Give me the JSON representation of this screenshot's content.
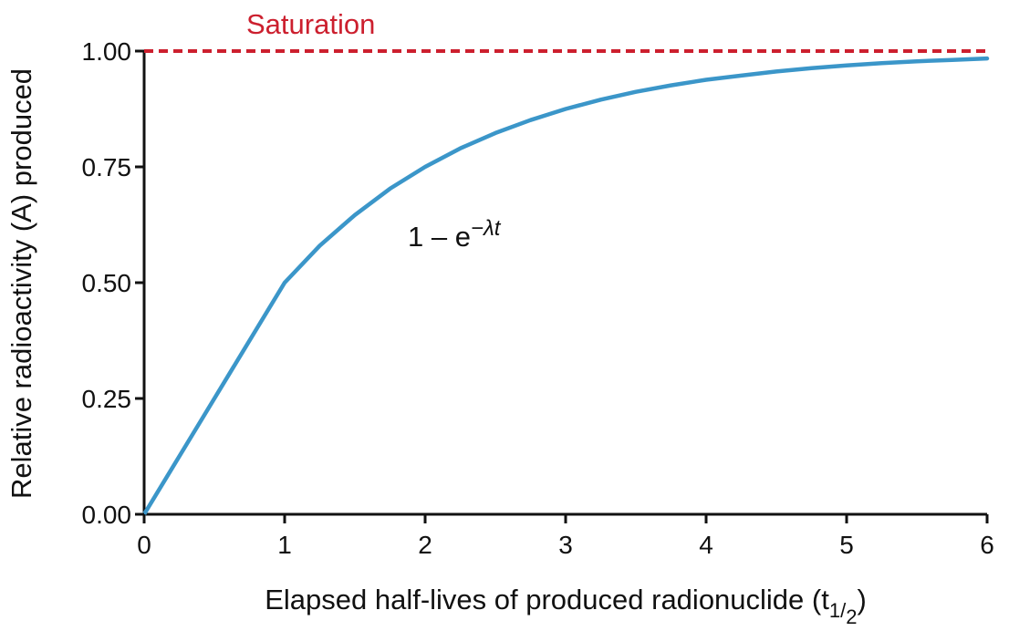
{
  "chart_data": {
    "type": "line",
    "title": "",
    "xlabel_main": "Elapsed half-lives of produced radionuclide (t",
    "xlabel_sub_num": "1",
    "xlabel_sub_sep": "/",
    "xlabel_sub_den": "2",
    "xlabel_close": ")",
    "ylabel": "Relative radioactivity (A) produced",
    "xlim": [
      0,
      6
    ],
    "ylim": [
      0,
      1
    ],
    "x_ticks": [
      0,
      1,
      2,
      3,
      4,
      5,
      6
    ],
    "y_ticks": [
      0,
      0.25,
      0.5,
      0.75,
      1.0
    ],
    "x_tick_labels": [
      "0",
      "1",
      "2",
      "3",
      "4",
      "5",
      "6"
    ],
    "y_tick_labels": [
      "0.00",
      "0.25",
      "0.50",
      "0.75",
      "1.00"
    ],
    "grid": false,
    "series": [
      {
        "x": [
          0,
          0.25,
          0.5,
          0.75,
          1,
          1.25,
          1.5,
          1.75,
          2,
          2.25,
          2.5,
          2.75,
          3,
          3.25,
          3.5,
          3.75,
          4,
          4.25,
          4.5,
          4.75,
          5,
          5.25,
          5.5,
          5.75,
          6
        ],
        "y": [
          0,
          0.125,
          0.25,
          0.375,
          0.5,
          0.58,
          0.646,
          0.703,
          0.75,
          0.79,
          0.823,
          0.851,
          0.875,
          0.895,
          0.912,
          0.926,
          0.938,
          0.947,
          0.956,
          0.963,
          0.969,
          0.974,
          0.978,
          0.981,
          0.984
        ],
        "color": "#3b96c9"
      }
    ],
    "reference_line": {
      "label": "Saturation",
      "y": 1.0,
      "color": "#cc1f2e",
      "style": "dashed"
    },
    "annotation": {
      "prefix": "1 – e",
      "superscript": "−λt",
      "x": 2.4,
      "y": 0.6
    }
  }
}
